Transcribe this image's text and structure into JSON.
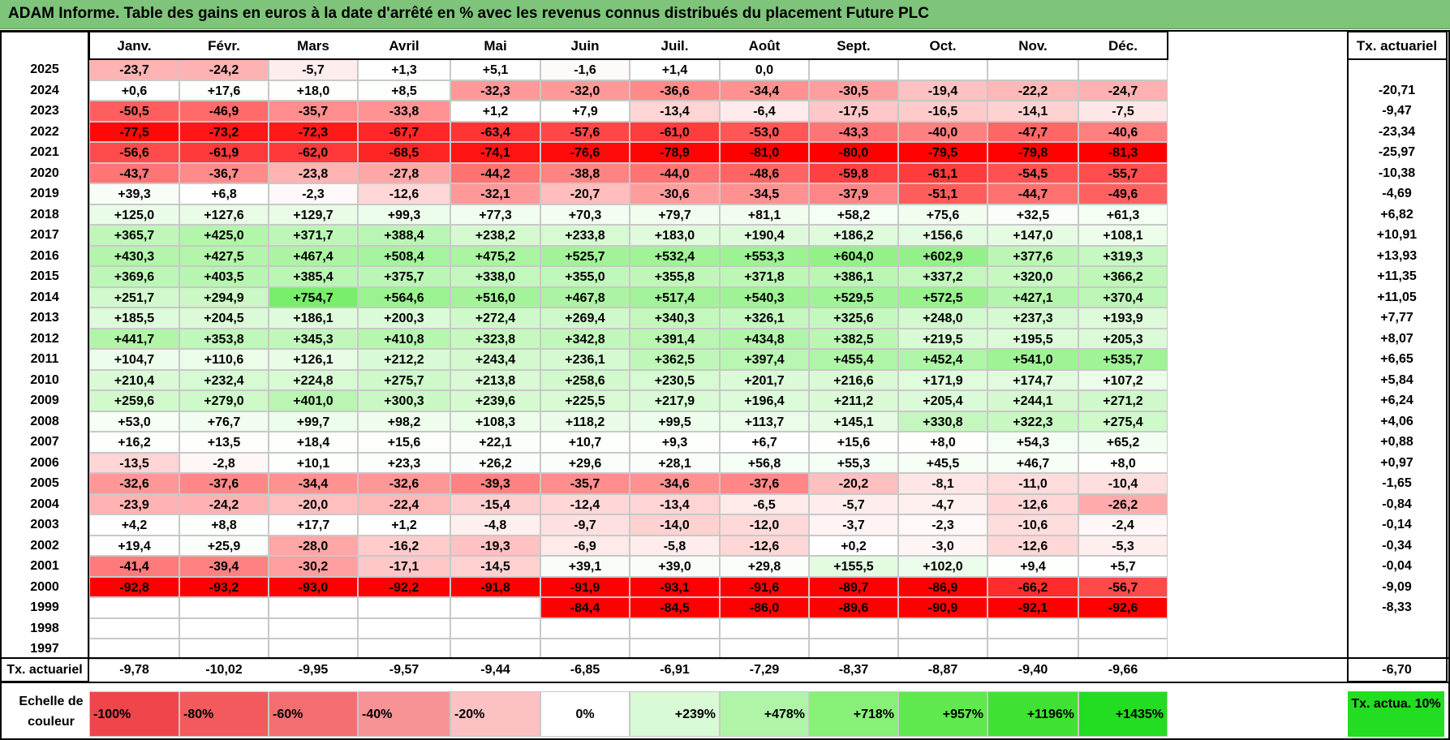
{
  "title": "ADAM Informe. Table des gains en euros à la date d'arrêté en % avec les revenus connus distribués du placement Future PLC",
  "months": [
    "Janv.",
    "Févr.",
    "Mars",
    "Avril",
    "Mai",
    "Juin",
    "Juil.",
    "Août",
    "Sept.",
    "Oct.",
    "Nov.",
    "Déc."
  ],
  "rate_header": "Tx. actuariel",
  "rows": [
    {
      "year": "2025",
      "values": [
        "-23,7",
        "-24,2",
        "-5,7",
        "+1,3",
        "+5,1",
        "-1,6",
        "+1,4",
        "0,0",
        "",
        "",
        "",
        ""
      ],
      "rate": ""
    },
    {
      "year": "2024",
      "values": [
        "+0,6",
        "+17,6",
        "+18,0",
        "+8,5",
        "-32,3",
        "-32,0",
        "-36,6",
        "-34,4",
        "-30,5",
        "-19,4",
        "-22,2",
        "-24,7"
      ],
      "rate": "-20,71"
    },
    {
      "year": "2023",
      "values": [
        "-50,5",
        "-46,9",
        "-35,7",
        "-33,8",
        "+1,2",
        "+7,9",
        "-13,4",
        "-6,4",
        "-17,5",
        "-16,5",
        "-14,1",
        "-7,5"
      ],
      "rate": "-9,47"
    },
    {
      "year": "2022",
      "values": [
        "-77,5",
        "-73,2",
        "-72,3",
        "-67,7",
        "-63,4",
        "-57,6",
        "-61,0",
        "-53,0",
        "-43,3",
        "-40,0",
        "-47,7",
        "-40,6"
      ],
      "rate": "-23,34"
    },
    {
      "year": "2021",
      "values": [
        "-56,6",
        "-61,9",
        "-62,0",
        "-68,5",
        "-74,1",
        "-76,6",
        "-78,9",
        "-81,0",
        "-80,0",
        "-79,5",
        "-79,8",
        "-81,3"
      ],
      "rate": "-25,97"
    },
    {
      "year": "2020",
      "values": [
        "-43,7",
        "-36,7",
        "-23,8",
        "-27,8",
        "-44,2",
        "-38,8",
        "-44,0",
        "-48,6",
        "-59,8",
        "-61,1",
        "-54,5",
        "-55,7"
      ],
      "rate": "-10,38"
    },
    {
      "year": "2019",
      "values": [
        "+39,3",
        "+6,8",
        "-2,3",
        "-12,6",
        "-32,1",
        "-20,7",
        "-30,6",
        "-34,5",
        "-37,9",
        "-51,1",
        "-44,7",
        "-49,6"
      ],
      "rate": "-4,69"
    },
    {
      "year": "2018",
      "values": [
        "+125,0",
        "+127,6",
        "+129,7",
        "+99,3",
        "+77,3",
        "+70,3",
        "+79,7",
        "+81,1",
        "+58,2",
        "+75,6",
        "+32,5",
        "+61,3"
      ],
      "rate": "+6,82"
    },
    {
      "year": "2017",
      "values": [
        "+365,7",
        "+425,0",
        "+371,7",
        "+388,4",
        "+238,2",
        "+233,8",
        "+183,0",
        "+190,4",
        "+186,2",
        "+156,6",
        "+147,0",
        "+108,1"
      ],
      "rate": "+10,91"
    },
    {
      "year": "2016",
      "values": [
        "+430,3",
        "+427,5",
        "+467,4",
        "+508,4",
        "+475,2",
        "+525,7",
        "+532,4",
        "+553,3",
        "+604,0",
        "+602,9",
        "+377,6",
        "+319,3"
      ],
      "rate": "+13,93"
    },
    {
      "year": "2015",
      "values": [
        "+369,6",
        "+403,5",
        "+385,4",
        "+375,7",
        "+338,0",
        "+355,0",
        "+355,8",
        "+371,8",
        "+386,1",
        "+337,2",
        "+320,0",
        "+366,2"
      ],
      "rate": "+11,35"
    },
    {
      "year": "2014",
      "values": [
        "+251,7",
        "+294,9",
        "+754,7",
        "+564,6",
        "+516,0",
        "+467,8",
        "+517,4",
        "+540,3",
        "+529,5",
        "+572,5",
        "+427,1",
        "+370,4"
      ],
      "rate": "+11,05"
    },
    {
      "year": "2013",
      "values": [
        "+185,5",
        "+204,5",
        "+186,1",
        "+200,3",
        "+272,4",
        "+269,4",
        "+340,3",
        "+326,1",
        "+325,6",
        "+248,0",
        "+237,3",
        "+193,9"
      ],
      "rate": "+7,77"
    },
    {
      "year": "2012",
      "values": [
        "+441,7",
        "+353,8",
        "+345,3",
        "+410,8",
        "+323,8",
        "+342,8",
        "+391,4",
        "+434,8",
        "+382,5",
        "+219,5",
        "+195,5",
        "+205,3"
      ],
      "rate": "+8,07"
    },
    {
      "year": "2011",
      "values": [
        "+104,7",
        "+110,6",
        "+126,1",
        "+212,2",
        "+243,4",
        "+236,1",
        "+362,5",
        "+397,4",
        "+455,4",
        "+452,4",
        "+541,0",
        "+535,7"
      ],
      "rate": "+6,65"
    },
    {
      "year": "2010",
      "values": [
        "+210,4",
        "+232,4",
        "+224,8",
        "+275,7",
        "+213,8",
        "+258,6",
        "+230,5",
        "+201,7",
        "+216,6",
        "+171,9",
        "+174,7",
        "+107,2"
      ],
      "rate": "+5,84"
    },
    {
      "year": "2009",
      "values": [
        "+259,6",
        "+279,0",
        "+401,0",
        "+300,3",
        "+239,6",
        "+225,5",
        "+217,9",
        "+196,4",
        "+211,2",
        "+205,4",
        "+244,1",
        "+271,2"
      ],
      "rate": "+6,24"
    },
    {
      "year": "2008",
      "values": [
        "+53,0",
        "+76,7",
        "+99,7",
        "+98,2",
        "+108,3",
        "+118,2",
        "+99,5",
        "+113,7",
        "+145,1",
        "+330,8",
        "+322,3",
        "+275,4"
      ],
      "rate": "+4,06"
    },
    {
      "year": "2007",
      "values": [
        "+16,2",
        "+13,5",
        "+18,4",
        "+15,6",
        "+22,1",
        "+10,7",
        "+9,3",
        "+6,7",
        "+15,6",
        "+8,0",
        "+54,3",
        "+65,2"
      ],
      "rate": "+0,88"
    },
    {
      "year": "2006",
      "values": [
        "-13,5",
        "-2,8",
        "+10,1",
        "+23,3",
        "+26,2",
        "+29,6",
        "+28,1",
        "+56,8",
        "+55,3",
        "+45,5",
        "+46,7",
        "+8,0"
      ],
      "rate": "+0,97"
    },
    {
      "year": "2005",
      "values": [
        "-32,6",
        "-37,6",
        "-34,4",
        "-32,6",
        "-39,3",
        "-35,7",
        "-34,6",
        "-37,6",
        "-20,2",
        "-8,1",
        "-11,0",
        "-10,4"
      ],
      "rate": "-1,65"
    },
    {
      "year": "2004",
      "values": [
        "-23,9",
        "-24,2",
        "-20,0",
        "-22,4",
        "-15,4",
        "-12,4",
        "-13,4",
        "-6,5",
        "-5,7",
        "-4,7",
        "-12,6",
        "-26,2"
      ],
      "rate": "-0,84"
    },
    {
      "year": "2003",
      "values": [
        "+4,2",
        "+8,8",
        "+17,7",
        "+1,2",
        "-4,8",
        "-9,7",
        "-14,0",
        "-12,0",
        "-3,7",
        "-2,3",
        "-10,6",
        "-2,4"
      ],
      "rate": "-0,14"
    },
    {
      "year": "2002",
      "values": [
        "+19,4",
        "+25,9",
        "-28,0",
        "-16,2",
        "-19,3",
        "-6,9",
        "-5,8",
        "-12,6",
        "+0,2",
        "-3,0",
        "-12,6",
        "-5,3"
      ],
      "rate": "-0,34"
    },
    {
      "year": "2001",
      "values": [
        "-41,4",
        "-39,4",
        "-30,2",
        "-17,1",
        "-14,5",
        "+39,1",
        "+39,0",
        "+29,8",
        "+155,5",
        "+102,0",
        "+9,4",
        "+5,7"
      ],
      "rate": "-0,04"
    },
    {
      "year": "2000",
      "values": [
        "-92,8",
        "-93,2",
        "-93,0",
        "-92,2",
        "-91,8",
        "-91,9",
        "-93,1",
        "-91,6",
        "-89,7",
        "-86,9",
        "-66,2",
        "-56,7"
      ],
      "rate": "-9,09"
    },
    {
      "year": "1999",
      "values": [
        "",
        "",
        "",
        "",
        "",
        "-84,4",
        "-84,5",
        "-86,0",
        "-89,6",
        "-90,9",
        "-92,1",
        "-92,6"
      ],
      "rate": "-8,33"
    },
    {
      "year": "1998",
      "values": [
        "",
        "",
        "",
        "",
        "",
        "",
        "",
        "",
        "",
        "",
        "",
        ""
      ],
      "rate": ""
    },
    {
      "year": "1997",
      "values": [
        "",
        "",
        "",
        "",
        "",
        "",
        "",
        "",
        "",
        "",
        "",
        ""
      ],
      "rate": ""
    }
  ],
  "footer": {
    "label": "Tx. actuariel",
    "values": [
      "-9,78",
      "-10,02",
      "-9,95",
      "-9,57",
      "-9,44",
      "-6,85",
      "-6,91",
      "-7,29",
      "-8,37",
      "-8,87",
      "-9,40",
      "-9,66"
    ],
    "rate": "-6,70"
  },
  "scale": {
    "label": "Echelle de couleur",
    "steps": [
      {
        "text": "-100%",
        "color": "#f0454b",
        "align": "left"
      },
      {
        "text": "-80%",
        "color": "#f25a5d",
        "align": "left"
      },
      {
        "text": "-60%",
        "color": "#f46e71",
        "align": "left"
      },
      {
        "text": "-40%",
        "color": "#f79295",
        "align": "left"
      },
      {
        "text": "-20%",
        "color": "#fbc1c3",
        "align": "left"
      },
      {
        "text": "0%",
        "color": "#ffffff",
        "align": "center"
      },
      {
        "text": "+239%",
        "color": "#d8fad4",
        "align": "right"
      },
      {
        "text": "+478%",
        "color": "#b0f5a7",
        "align": "right"
      },
      {
        "text": "+718%",
        "color": "#88ef79",
        "align": "right"
      },
      {
        "text": "+957%",
        "color": "#5fe94e",
        "align": "right"
      },
      {
        "text": "+1196%",
        "color": "#3fe232",
        "align": "right"
      },
      {
        "text": "+1435%",
        "color": "#22dd22",
        "align": "right"
      }
    ],
    "rate_legend": "Tx. actua. 10%"
  }
}
